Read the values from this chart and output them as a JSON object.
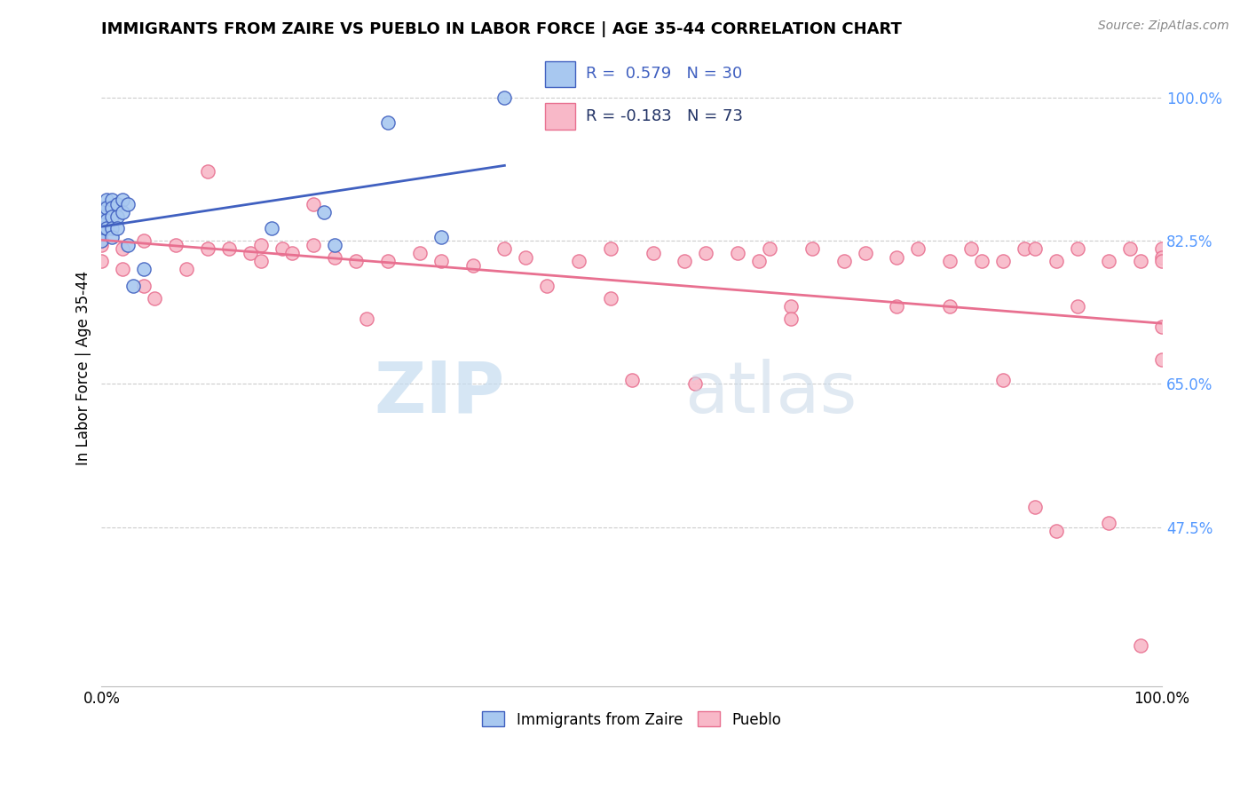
{
  "title": "IMMIGRANTS FROM ZAIRE VS PUEBLO IN LABOR FORCE | AGE 35-44 CORRELATION CHART",
  "source": "Source: ZipAtlas.com",
  "ylabel": "In Labor Force | Age 35-44",
  "color_zaire": "#A8C8F0",
  "color_pueblo": "#F8B8C8",
  "color_line_zaire": "#4060C0",
  "color_line_pueblo": "#E87090",
  "color_right_ticks": "#5599FF",
  "x_min": 0.0,
  "x_max": 1.0,
  "y_min": 0.28,
  "y_max": 1.06,
  "right_yticks": [
    1.0,
    0.825,
    0.65,
    0.475
  ],
  "right_yticklabels": [
    "100.0%",
    "82.5%",
    "65.0%",
    "47.5%"
  ],
  "zaire_x": [
    0.0,
    0.0,
    0.0,
    0.0,
    0.0,
    0.0,
    0.005,
    0.005,
    0.005,
    0.005,
    0.01,
    0.01,
    0.01,
    0.01,
    0.01,
    0.015,
    0.015,
    0.015,
    0.02,
    0.02,
    0.025,
    0.025,
    0.03,
    0.04,
    0.16,
    0.21,
    0.22,
    0.27,
    0.32,
    0.38
  ],
  "zaire_y": [
    0.865,
    0.855,
    0.845,
    0.84,
    0.835,
    0.825,
    0.875,
    0.865,
    0.85,
    0.84,
    0.875,
    0.865,
    0.855,
    0.84,
    0.83,
    0.87,
    0.855,
    0.84,
    0.875,
    0.86,
    0.87,
    0.82,
    0.77,
    0.79,
    0.84,
    0.86,
    0.82,
    0.97,
    0.83,
    1.0
  ],
  "pueblo_x": [
    0.0,
    0.0,
    0.0,
    0.02,
    0.02,
    0.04,
    0.04,
    0.07,
    0.08,
    0.1,
    0.12,
    0.14,
    0.15,
    0.17,
    0.18,
    0.2,
    0.22,
    0.24,
    0.27,
    0.3,
    0.32,
    0.35,
    0.38,
    0.4,
    0.45,
    0.48,
    0.52,
    0.55,
    0.57,
    0.6,
    0.62,
    0.63,
    0.67,
    0.7,
    0.72,
    0.75,
    0.77,
    0.8,
    0.82,
    0.83,
    0.85,
    0.87,
    0.88,
    0.9,
    0.92,
    0.95,
    0.97,
    0.98,
    1.0,
    1.0,
    1.0,
    0.56,
    0.1,
    0.2,
    0.42,
    0.5,
    0.65,
    0.8,
    0.85,
    0.92,
    0.05,
    0.15,
    0.25,
    0.48,
    0.65,
    0.75,
    0.88,
    0.9,
    0.95,
    0.98,
    1.0,
    1.0
  ],
  "pueblo_y": [
    0.825,
    0.82,
    0.8,
    0.815,
    0.79,
    0.825,
    0.77,
    0.82,
    0.79,
    0.815,
    0.815,
    0.81,
    0.8,
    0.815,
    0.81,
    0.82,
    0.805,
    0.8,
    0.8,
    0.81,
    0.8,
    0.795,
    0.815,
    0.805,
    0.8,
    0.815,
    0.81,
    0.8,
    0.81,
    0.81,
    0.8,
    0.815,
    0.815,
    0.8,
    0.81,
    0.805,
    0.815,
    0.8,
    0.815,
    0.8,
    0.8,
    0.815,
    0.815,
    0.8,
    0.815,
    0.8,
    0.815,
    0.8,
    0.815,
    0.805,
    0.8,
    0.65,
    0.91,
    0.87,
    0.77,
    0.655,
    0.745,
    0.745,
    0.655,
    0.745,
    0.755,
    0.82,
    0.73,
    0.755,
    0.73,
    0.745,
    0.5,
    0.47,
    0.48,
    0.33,
    0.68,
    0.72
  ]
}
